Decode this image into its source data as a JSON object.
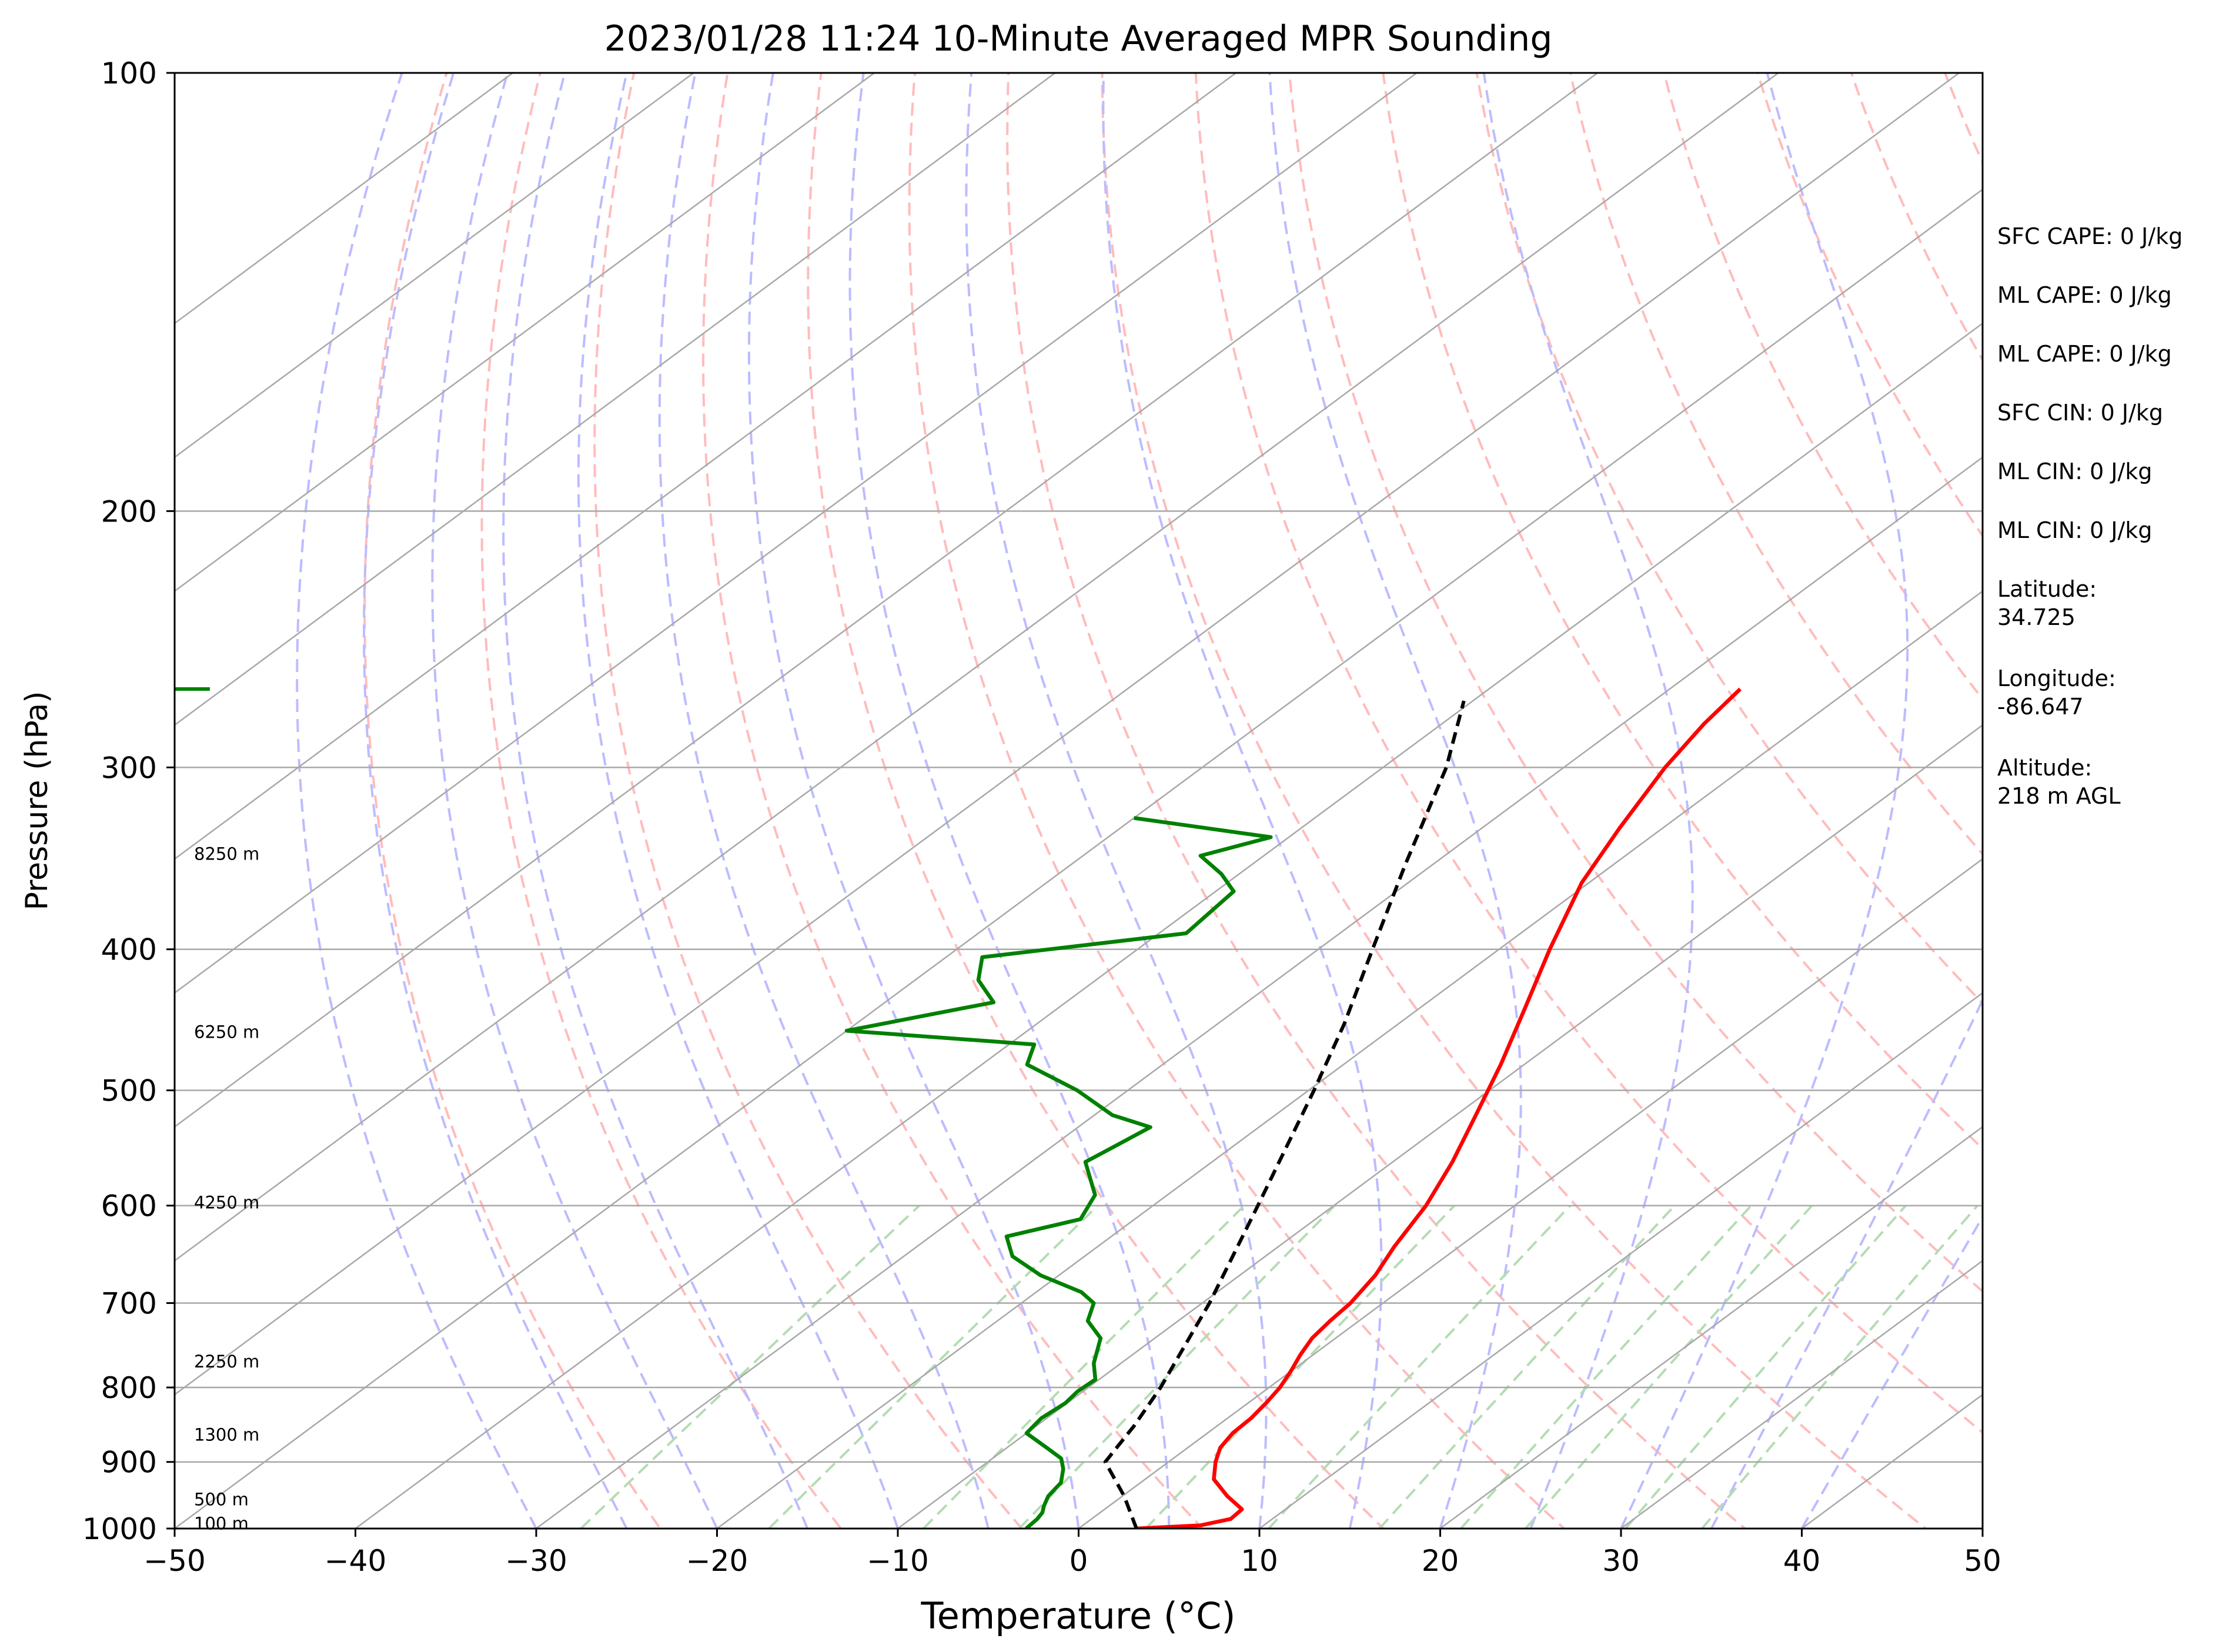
{
  "chart_data": {
    "type": "line",
    "title": "2023/01/28 11:24 10-Minute Averaged MPR Sounding",
    "xlabel": "Temperature (°C)",
    "ylabel": "Pressure (hPa)",
    "xlim": [
      -50,
      50
    ],
    "ylim": [
      1000,
      100
    ],
    "y_scale": "log",
    "skew_t": true,
    "x_ticks": [
      -50,
      -40,
      -30,
      -20,
      -10,
      0,
      10,
      20,
      30,
      40,
      50
    ],
    "x_tick_labels": [
      "−50",
      "−40",
      "−30",
      "−20",
      "−10",
      "0",
      "10",
      "20",
      "30",
      "40",
      "50"
    ],
    "y_ticks": [
      1000,
      900,
      800,
      700,
      600,
      500,
      400,
      300,
      200,
      100
    ],
    "y_tick_labels": [
      "1000",
      "900",
      "800",
      "700",
      "600",
      "500",
      "400",
      "300",
      "200",
      "100"
    ],
    "grid": true,
    "series": [
      {
        "color": "#ff0000",
        "points": [
          [
            1000,
            3.2
          ],
          [
            995,
            6.5
          ],
          [
            985,
            7.7
          ],
          [
            970,
            7.6
          ],
          [
            950,
            5.8
          ],
          [
            925,
            3.8
          ],
          [
            900,
            2.6
          ],
          [
            880,
            1.8
          ],
          [
            860,
            1.4
          ],
          [
            840,
            1.3
          ],
          [
            820,
            1.0
          ],
          [
            800,
            0.6
          ],
          [
            780,
            0.0
          ],
          [
            760,
            -0.7
          ],
          [
            740,
            -1.3
          ],
          [
            720,
            -1.6
          ],
          [
            700,
            -1.8
          ],
          [
            670,
            -2.5
          ],
          [
            640,
            -3.6
          ],
          [
            600,
            -4.9
          ],
          [
            560,
            -6.7
          ],
          [
            520,
            -8.9
          ],
          [
            480,
            -11.3
          ],
          [
            440,
            -14.1
          ],
          [
            400,
            -17.2
          ],
          [
            360,
            -20.4
          ],
          [
            330,
            -22.4
          ],
          [
            300,
            -24.4
          ],
          [
            280,
            -25.5
          ],
          [
            265,
            -26.1
          ]
        ]
      },
      {
        "color": "#008000",
        "points": [
          [
            1000,
            -2.9
          ],
          [
            985,
            -3.0
          ],
          [
            975,
            -3.2
          ],
          [
            965,
            -3.6
          ],
          [
            950,
            -4.1
          ],
          [
            930,
            -4.4
          ],
          [
            910,
            -5.3
          ],
          [
            895,
            -6.2
          ],
          [
            880,
            -7.8
          ],
          [
            860,
            -10.0
          ],
          [
            840,
            -10.3
          ],
          [
            820,
            -10.1
          ],
          [
            805,
            -10.3
          ],
          [
            790,
            -10.2
          ],
          [
            770,
            -11.5
          ],
          [
            740,
            -13.0
          ],
          [
            720,
            -15.0
          ],
          [
            700,
            -16.0
          ],
          [
            688,
            -17.5
          ],
          [
            670,
            -21.0
          ],
          [
            650,
            -24.0
          ],
          [
            630,
            -25.8
          ],
          [
            613,
            -23.0
          ],
          [
            590,
            -24.0
          ],
          [
            560,
            -27.0
          ],
          [
            530,
            -26.0
          ],
          [
            520,
            -29.0
          ],
          [
            500,
            -32.8
          ],
          [
            480,
            -37.5
          ],
          [
            465,
            -38.6
          ],
          [
            455,
            -50.0
          ],
          [
            435,
            -44.0
          ],
          [
            420,
            -46.5
          ],
          [
            405,
            -48.0
          ],
          [
            390,
            -38.5
          ],
          [
            365,
            -39.0
          ],
          [
            355,
            -41.0
          ],
          [
            345,
            -43.5
          ],
          [
            335,
            -41.0
          ],
          [
            325,
            -50.0
          ]
        ]
      },
      {
        "color": "#000000",
        "dashed": true,
        "points": [
          [
            1000,
            3.2
          ],
          [
            950,
            0.1
          ],
          [
            900,
            -3.5
          ],
          [
            850,
            -4.6
          ],
          [
            800,
            -6.0
          ],
          [
            700,
            -9.6
          ],
          [
            600,
            -14.2
          ],
          [
            500,
            -19.7
          ],
          [
            450,
            -23.0
          ],
          [
            400,
            -27.0
          ],
          [
            350,
            -31.5
          ],
          [
            300,
            -36.5
          ],
          [
            270,
            -40.5
          ]
        ]
      }
    ],
    "wind_barb_top": {
      "pressure": 265,
      "color": "#008000"
    },
    "height_labels": [
      {
        "p": 992,
        "text": "100 m"
      },
      {
        "p": 955,
        "text": "500 m"
      },
      {
        "p": 862,
        "text": "1300 m"
      },
      {
        "p": 768,
        "text": "2250 m"
      },
      {
        "p": 597,
        "text": "4250 m"
      },
      {
        "p": 456,
        "text": "6250 m"
      },
      {
        "p": 344,
        "text": "8250 m"
      }
    ],
    "stats": [
      {
        "text": "SFC CAPE: 0 J/kg"
      },
      {
        "text": "ML CAPE: 0 J/kg"
      },
      {
        "text": "ML CAPE: 0 J/kg"
      },
      {
        "text": "SFC CIN: 0 J/kg"
      },
      {
        "text": "ML CIN: 0 J/kg"
      },
      {
        "text": "ML CIN: 0 J/kg"
      },
      {
        "label": "Latitude:",
        "value": "34.725"
      },
      {
        "label": "Longitude:",
        "value": "-86.647"
      },
      {
        "label": "Altitude:",
        "value": "218 m AGL"
      }
    ],
    "colors": {
      "temperature": "#ff0000",
      "dewpoint": "#008000",
      "parcel": "#000000",
      "isotherm": "#a8a8a8",
      "dry_adiabat": "#ffbcbc",
      "moist_adiabat": "#bcbcff",
      "mixing_ratio": "#b4dcb4"
    }
  }
}
